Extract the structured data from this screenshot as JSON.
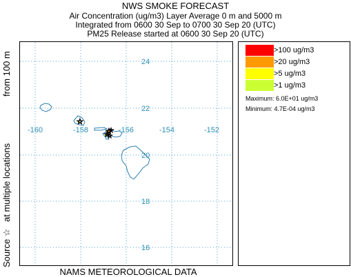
{
  "header": {
    "title": "NWS SMOKE FORECAST",
    "line2": "Air Concentration (ug/m3) Layer Average    0 m and  5000 m",
    "line3": "Integrated from 0600 30 Sep to 0700 30 Sep 20 (UTC)",
    "line4": "PM25 Release started at 0600 30 Sep 20 (UTC)"
  },
  "footer": "NAMS METEOROLOGICAL DATA",
  "side_label": {
    "source": "Source ☆",
    "locations": "at multiple locations",
    "from": "from   100 m"
  },
  "map": {
    "latitude_labels": [
      "24",
      "22",
      "20",
      "18",
      "16"
    ],
    "longitude_labels": [
      "-160",
      "-158",
      "-156",
      "-154",
      "-152"
    ],
    "grid_color": "#4a9fd0",
    "coast_color": "#2e7fb0"
  },
  "legend": {
    "items": [
      {
        "label": ">100 ug/m3",
        "color": "#ff0000"
      },
      {
        "label": ">20 ug/m3",
        "color": "#ff9900"
      },
      {
        "label": ">5 ug/m3",
        "color": "#ffff00"
      },
      {
        "label": ">1 ug/m3",
        "color": "#ccff33"
      }
    ],
    "maximum": "Maximum: 6.0E+01 ug/m3",
    "minimum": "Minimum: 4.7E-04 ug/m3"
  }
}
